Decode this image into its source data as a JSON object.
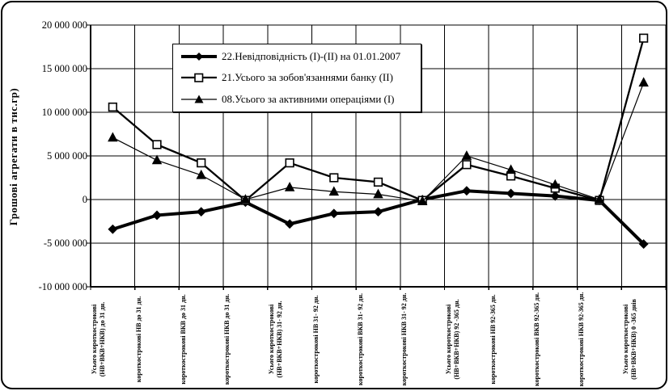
{
  "figure": {
    "y_axis_title": "Грошові агрегати в тис.гр)"
  },
  "chart_data": {
    "type": "line",
    "title": "",
    "xlabel": "",
    "ylabel": "Грошові агрегати в тис.гр)",
    "ylim": [
      -10000000,
      20000000
    ],
    "yticks": [
      20000000,
      15000000,
      10000000,
      5000000,
      0,
      -5000000,
      -10000000
    ],
    "ytick_labels": [
      "20 000 000",
      "15 000 000",
      "10 000 000",
      "5 000 000",
      "0",
      "-5 000 000",
      "-10 000 000"
    ],
    "grid": true,
    "legend_position": "top-center-inside",
    "categories": [
      "Усього короткострокові (НВ+ВКВ+НКВ) до 31 дн.",
      "короткострокові НВ до 31 дн.",
      "короткострокові ВКВ до 31 дн.",
      "короткострокові НКВ до 31 дн.",
      "Усього короткострокові (НВ+ВКВ+НКВ) 31- 92 дн.",
      "короткострокові НВ 31- 92 дн.",
      "короткострокові ВКВ 31- 92 дн.",
      "короткострокові НКВ 31- 92 дн.",
      "Усього короткострокові (НВ+ВКВ+НКВ) 92 -365 дн.",
      "короткострокові НВ 92-365 дн.",
      "короткострокові ВКВ 92-365 дн.",
      "короткострокові НКВ 92-365 дн.",
      "Усього короткострокові (НВ+ВКВ+НКВ) 0 -365 днів"
    ],
    "series": [
      {
        "name": "22.Невідповідність (I)-(II) на 01.01.2007",
        "marker": "filled-diamond",
        "line": "thick",
        "color": "#000000",
        "values": [
          -3400000,
          -1800000,
          -1400000,
          -300000,
          -2800000,
          -1600000,
          -1400000,
          0,
          1000000,
          700000,
          400000,
          -100000,
          -5100000
        ]
      },
      {
        "name": "21.Усього за зобов'язаннями банку (II)",
        "marker": "open-square",
        "line": "medium",
        "color": "#000000",
        "values": [
          10600000,
          6300000,
          4200000,
          -100000,
          4200000,
          2500000,
          2000000,
          -100000,
          4000000,
          2700000,
          1300000,
          -100000,
          18500000
        ]
      },
      {
        "name": "08.Усього за активними операціями (I)",
        "marker": "filled-triangle",
        "line": "thin",
        "color": "#000000",
        "values": [
          7100000,
          4500000,
          2800000,
          0,
          1400000,
          900000,
          600000,
          -200000,
          5000000,
          3400000,
          1700000,
          0,
          13400000
        ]
      }
    ]
  }
}
